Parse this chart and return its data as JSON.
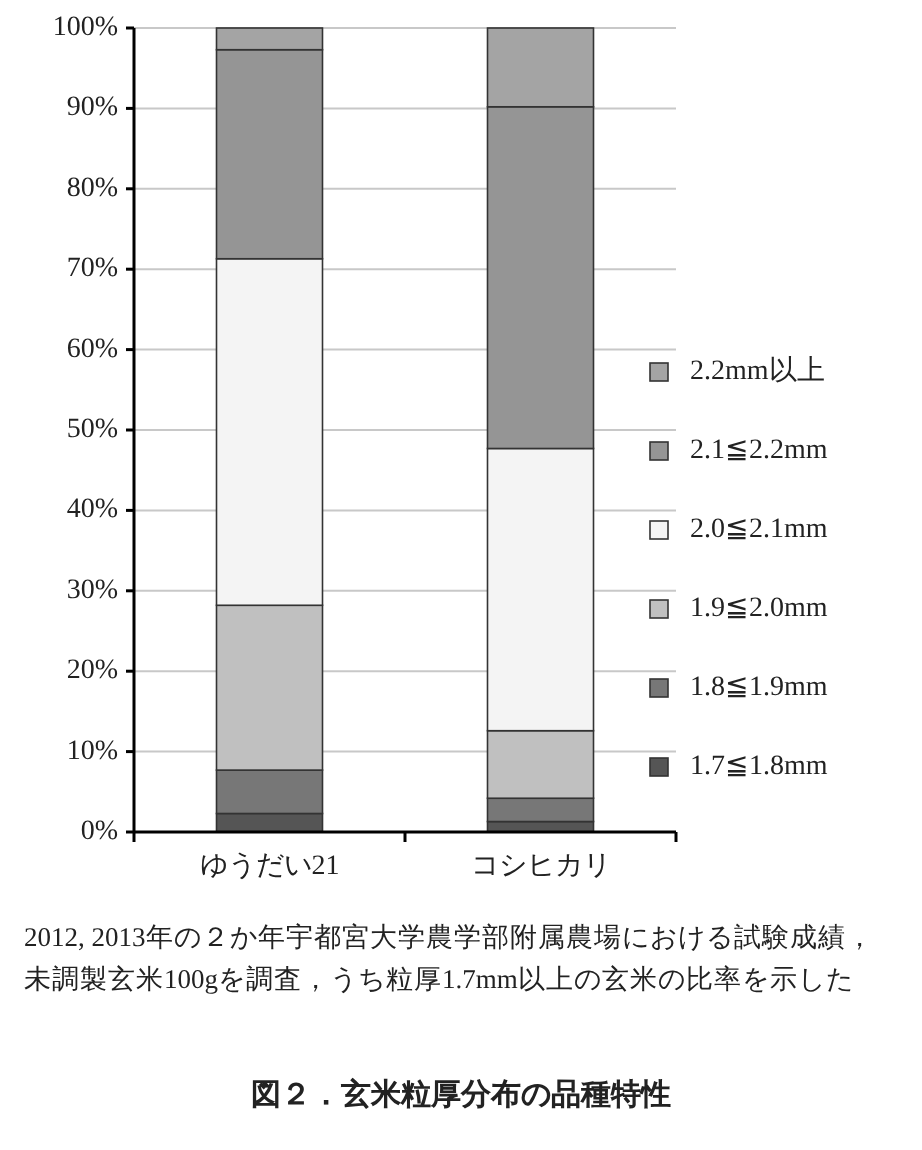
{
  "chart_data": {
    "type": "bar",
    "title": "図２．玄米粒厚分布の品種特性",
    "categories": [
      "ゆうだい21",
      "コシヒカリ"
    ],
    "stacked": true,
    "series": [
      {
        "name": "1.7≦1.8mm",
        "color": "#555555",
        "values": [
          2.3,
          1.3
        ]
      },
      {
        "name": "1.8≦1.9mm",
        "color": "#777777",
        "values": [
          5.4,
          2.9
        ]
      },
      {
        "name": "1.9≦2.0mm",
        "color": "#c0c0c0",
        "values": [
          20.5,
          8.4
        ]
      },
      {
        "name": "2.0≦2.1mm",
        "color": "#f4f4f4",
        "values": [
          43.1,
          35.1
        ]
      },
      {
        "name": "2.1≦2.2mm",
        "color": "#959595",
        "values": [
          26.0,
          42.5
        ]
      },
      {
        "name": "2.2mm以上",
        "color": "#a4a4a4",
        "values": [
          2.7,
          9.8
        ]
      }
    ],
    "ylim": [
      0,
      100
    ],
    "yticks": [
      {
        "value": 0,
        "label": "0%"
      },
      {
        "value": 10,
        "label": "10%"
      },
      {
        "value": 20,
        "label": "20%"
      },
      {
        "value": 30,
        "label": "30%"
      },
      {
        "value": 40,
        "label": "40%"
      },
      {
        "value": 50,
        "label": "50%"
      },
      {
        "value": 60,
        "label": "60%"
      },
      {
        "value": 70,
        "label": "70%"
      },
      {
        "value": 80,
        "label": "80%"
      },
      {
        "value": 90,
        "label": "90%"
      },
      {
        "value": 100,
        "label": "100%"
      }
    ],
    "grid": "y",
    "legend": "right",
    "annotations": [
      "2012, 2013年の２か年宇都宮大学農学部附属農場における試験成績，未調製玄米100gを調査，うち粒厚1.7mm以上の玄米の比率を示した"
    ]
  }
}
